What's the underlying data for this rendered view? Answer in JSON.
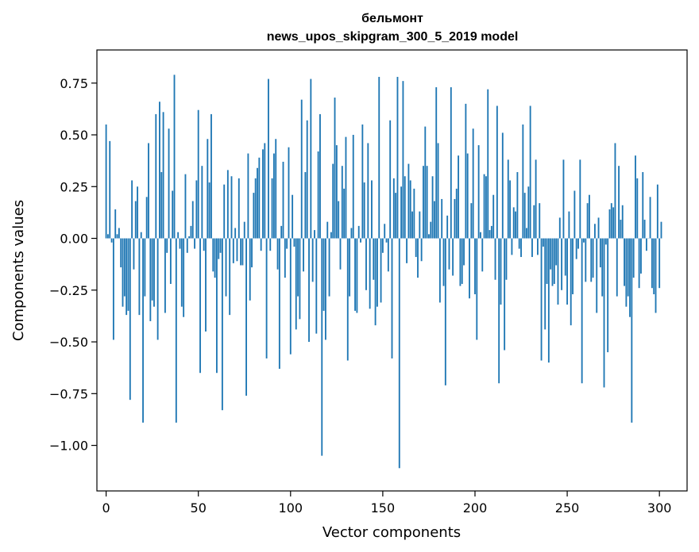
{
  "chart_data": {
    "type": "bar",
    "title": "бельмонт",
    "subtitle": "news_upos_skipgram_300_5_2019 model",
    "xlabel": "Vector components",
    "ylabel": "Components values",
    "xlim": [
      -5,
      315
    ],
    "ylim": [
      -1.22,
      0.91
    ],
    "xticks": [
      0,
      50,
      100,
      150,
      200,
      250,
      300
    ],
    "yticks": [
      0.75,
      0.5,
      0.25,
      0.0,
      -0.25,
      -0.5,
      -0.75,
      -1.0
    ],
    "ytick_labels": [
      "0.75",
      "0.50",
      "0.25",
      "0.00",
      "−0.25",
      "−0.50",
      "−0.75",
      "−1.00"
    ],
    "bar_color": "#1f77b4",
    "grid": false,
    "values": [
      0.55,
      0.02,
      0.47,
      -0.02,
      -0.49,
      0.14,
      0.02,
      0.05,
      -0.14,
      -0.33,
      -0.28,
      -0.37,
      -0.35,
      -0.78,
      0.28,
      -0.15,
      0.18,
      0.25,
      -0.37,
      0.03,
      -0.89,
      -0.28,
      0.2,
      0.46,
      -0.4,
      -0.3,
      -0.33,
      0.6,
      -0.49,
      0.66,
      0.32,
      0.61,
      -0.36,
      -0.07,
      0.53,
      -0.22,
      0.23,
      0.79,
      -0.89,
      0.03,
      -0.05,
      -0.33,
      -0.38,
      0.31,
      -0.07,
      0.01,
      0.06,
      0.18,
      -0.05,
      0.28,
      0.62,
      -0.65,
      0.35,
      -0.06,
      -0.45,
      0.48,
      0.27,
      0.6,
      -0.16,
      -0.19,
      -0.65,
      -0.1,
      -0.07,
      -0.83,
      0.26,
      -0.28,
      0.33,
      -0.37,
      0.3,
      -0.12,
      0.05,
      -0.11,
      0.29,
      -0.13,
      -0.13,
      0.08,
      -0.76,
      0.41,
      -0.3,
      -0.14,
      0.22,
      0.29,
      0.34,
      0.39,
      -0.06,
      0.43,
      0.46,
      -0.58,
      0.77,
      -0.06,
      0.29,
      0.41,
      0.48,
      -0.15,
      -0.63,
      0.06,
      0.37,
      -0.19,
      -0.05,
      0.44,
      -0.56,
      0.21,
      -0.04,
      -0.44,
      -0.28,
      -0.39,
      0.67,
      -0.16,
      0.32,
      0.57,
      -0.5,
      0.77,
      -0.21,
      0.04,
      -0.46,
      0.42,
      0.6,
      -1.05,
      -0.35,
      -0.49,
      0.08,
      -0.28,
      0.03,
      0.36,
      0.68,
      0.45,
      0.18,
      -0.15,
      0.35,
      0.24,
      0.49,
      -0.59,
      -0.28,
      0.05,
      0.5,
      -0.35,
      -0.36,
      0.06,
      -0.02,
      0.55,
      0.27,
      -0.25,
      0.46,
      -0.34,
      0.28,
      -0.2,
      -0.42,
      -0.33,
      0.78,
      -0.31,
      -0.07,
      0.07,
      -0.02,
      -0.16,
      0.57,
      -0.58,
      0.29,
      0.22,
      0.78,
      -1.11,
      0.25,
      0.76,
      0.3,
      -0.12,
      0.36,
      0.28,
      0.13,
      0.24,
      -0.09,
      -0.19,
      0.13,
      -0.11,
      0.35,
      0.54,
      0.35,
      0.02,
      0.08,
      0.3,
      0.18,
      0.73,
      0.46,
      -0.31,
      0.19,
      -0.23,
      -0.71,
      0.11,
      -0.15,
      0.73,
      -0.18,
      0.19,
      0.24,
      0.4,
      -0.23,
      -0.22,
      -0.13,
      0.65,
      0.41,
      -0.29,
      0.17,
      0.53,
      -0.27,
      -0.49,
      0.45,
      0.03,
      -0.16,
      0.31,
      0.3,
      0.72,
      0.04,
      0.06,
      0.21,
      -0.2,
      0.64,
      -0.7,
      -0.32,
      0.51,
      -0.54,
      -0.2,
      0.38,
      0.28,
      -0.08,
      0.15,
      0.13,
      0.32,
      -0.05,
      -0.09,
      0.55,
      0.22,
      0.05,
      0.25,
      0.64,
      -0.09,
      0.16,
      0.38,
      -0.08,
      0.17,
      -0.59,
      -0.04,
      -0.44,
      -0.22,
      -0.6,
      -0.15,
      -0.23,
      -0.22,
      -0.13,
      -0.32,
      0.1,
      -0.25,
      0.38,
      -0.18,
      -0.32,
      0.13,
      -0.42,
      -0.27,
      0.23,
      -0.1,
      -0.05,
      0.38,
      -0.7,
      -0.02,
      -0.21,
      0.17,
      0.21,
      -0.21,
      -0.19,
      0.07,
      -0.36,
      0.1,
      -0.14,
      -0.28,
      -0.72,
      -0.03,
      -0.55,
      0.14,
      0.17,
      0.15,
      0.46,
      -0.28,
      0.35,
      0.09,
      0.16,
      -0.23,
      -0.33,
      -0.28,
      -0.38,
      -0.89,
      -0.19,
      0.4,
      0.29,
      -0.24,
      -0.17,
      0.32,
      0.09,
      -0.06,
      0.0,
      0.2,
      -0.24,
      -0.27,
      -0.36,
      0.26,
      -0.24,
      0.08
    ]
  }
}
